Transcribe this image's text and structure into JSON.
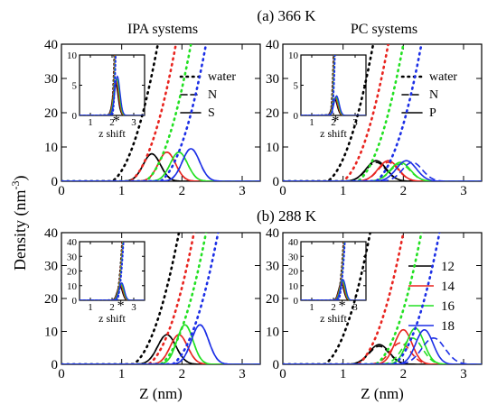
{
  "figure": {
    "row_titles": [
      "(a) 366 K",
      "(b) 288 K"
    ],
    "column_titles": [
      "IPA systems",
      "PC systems"
    ],
    "y_axis_label": "Density (nm",
    "y_axis_unit_exp": "-3",
    "y_axis_label_close": ")",
    "x_axis_label": "Z (nm)"
  },
  "legends": {
    "style_ipa": [
      "water",
      "N",
      "S"
    ],
    "style_pc": [
      "water",
      "N",
      "P"
    ],
    "size_entries": [
      "12",
      "14",
      "16",
      "18"
    ]
  },
  "colors": {
    "12": "#000000",
    "14": "#e8241f",
    "16": "#22e022",
    "18": "#1c2fe6"
  },
  "chart_data": [
    {
      "id": "a-ipa",
      "type": "line",
      "title": "IPA systems",
      "xlim": [
        0,
        3.3
      ],
      "ylim": [
        0,
        40
      ],
      "xticks": [
        "0",
        "1",
        "2",
        "3"
      ],
      "yticks": [
        "0",
        "10",
        "20",
        "30",
        "40"
      ],
      "series": [
        {
          "name": "12",
          "water_onset": 0.85,
          "N": {
            "center": 1.5,
            "height": 8.0,
            "width": 0.3
          },
          "S": {
            "center": 1.5,
            "height": 8.0,
            "width": 0.3
          }
        },
        {
          "name": "14",
          "water_onset": 1.15,
          "N": {
            "center": 1.75,
            "height": 8.5,
            "width": 0.3
          },
          "S": {
            "center": 1.75,
            "height": 8.5,
            "width": 0.3
          }
        },
        {
          "name": "16",
          "water_onset": 1.4,
          "N": {
            "center": 1.95,
            "height": 8.5,
            "width": 0.3
          },
          "S": {
            "center": 1.95,
            "height": 8.5,
            "width": 0.3
          }
        },
        {
          "name": "18",
          "water_onset": 1.65,
          "N": {
            "center": 2.15,
            "height": 9.5,
            "width": 0.3
          },
          "S": {
            "center": 2.15,
            "height": 9.5,
            "width": 0.3
          }
        }
      ],
      "inset": {
        "xlim": [
          0.5,
          3.5
        ],
        "ylim": [
          0,
          10
        ],
        "xticks": [
          "1",
          "2",
          "3"
        ],
        "yticks": [
          "0",
          "5",
          "10"
        ],
        "xlabel": "z shift",
        "peak_center": 2.2,
        "peak_height": 6,
        "marker": "*"
      }
    },
    {
      "id": "a-pc",
      "type": "line",
      "title": "PC systems",
      "xlim": [
        0,
        3.3
      ],
      "ylim": [
        0,
        40
      ],
      "xticks": [
        "0",
        "1",
        "2",
        "3"
      ],
      "yticks": [
        "0",
        "10",
        "20",
        "30",
        "40"
      ],
      "series": [
        {
          "name": "12",
          "water_onset": 0.75,
          "N": {
            "center": 1.55,
            "height": 5.5,
            "width": 0.35
          },
          "P": {
            "center": 1.55,
            "height": 6.0,
            "width": 0.35
          }
        },
        {
          "name": "14",
          "water_onset": 1.0,
          "N": {
            "center": 1.75,
            "height": 5.5,
            "width": 0.35
          },
          "P": {
            "center": 1.75,
            "height": 6.0,
            "width": 0.35
          }
        },
        {
          "name": "16",
          "water_onset": 1.25,
          "N": {
            "center": 1.95,
            "height": 5.0,
            "width": 0.35
          },
          "P": {
            "center": 1.95,
            "height": 5.5,
            "width": 0.35
          }
        },
        {
          "name": "18",
          "water_onset": 1.55,
          "N": {
            "center": 2.15,
            "height": 5.5,
            "width": 0.35
          },
          "P": {
            "center": 2.05,
            "height": 6.0,
            "width": 0.35
          }
        }
      ],
      "inset": {
        "xlim": [
          0.5,
          3.5
        ],
        "ylim": [
          0,
          10
        ],
        "xticks": [
          "1",
          "2",
          "3"
        ],
        "yticks": [
          "0",
          "5",
          "10"
        ],
        "xlabel": "z shift",
        "peak_center": 2.1,
        "peak_height": 3,
        "marker": "*"
      }
    },
    {
      "id": "b-ipa",
      "type": "line",
      "title": "",
      "xlim": [
        0,
        3.3
      ],
      "ylim": [
        0,
        40
      ],
      "xticks": [
        "0",
        "1",
        "2",
        "3"
      ],
      "yticks": [
        "0",
        "10",
        "20",
        "30",
        "40"
      ],
      "series": [
        {
          "name": "12",
          "water_onset": 1.2,
          "N": {
            "center": 1.75,
            "height": 9.0,
            "width": 0.32
          },
          "S": {
            "center": 1.75,
            "height": 9.0,
            "width": 0.32
          }
        },
        {
          "name": "14",
          "water_onset": 1.45,
          "N": {
            "center": 1.95,
            "height": 9.0,
            "width": 0.3
          },
          "S": {
            "center": 1.95,
            "height": 9.0,
            "width": 0.3
          }
        },
        {
          "name": "16",
          "water_onset": 1.65,
          "N": {
            "center": 2.05,
            "height": 12.0,
            "width": 0.28
          },
          "S": {
            "center": 2.05,
            "height": 12.0,
            "width": 0.28
          }
        },
        {
          "name": "18",
          "water_onset": 1.85,
          "N": {
            "center": 2.3,
            "height": 12.0,
            "width": 0.3
          },
          "S": {
            "center": 2.3,
            "height": 12.0,
            "width": 0.3
          }
        }
      ],
      "inset": {
        "xlim": [
          0.5,
          3.5
        ],
        "ylim": [
          0,
          40
        ],
        "xticks": [
          "1",
          "2",
          "3"
        ],
        "yticks": [
          "0",
          "10",
          "20",
          "30",
          "40"
        ],
        "xlabel": "z shift",
        "peak_center": 2.4,
        "peak_height": 11,
        "marker": "*"
      }
    },
    {
      "id": "b-pc",
      "type": "line",
      "title": "",
      "xlim": [
        0,
        3.3
      ],
      "ylim": [
        0,
        40
      ],
      "xticks": [
        "0",
        "1",
        "2",
        "3"
      ],
      "yticks": [
        "0",
        "10",
        "20",
        "30",
        "40"
      ],
      "series": [
        {
          "name": "12",
          "water_onset": 0.7,
          "N": {
            "center": 1.6,
            "height": 5.5,
            "width": 0.35
          },
          "P": {
            "center": 1.6,
            "height": 6.0,
            "width": 0.35
          }
        },
        {
          "name": "14",
          "water_onset": 1.25,
          "N": {
            "center": 1.95,
            "height": 6.5,
            "width": 0.35
          },
          "P": {
            "center": 2.0,
            "height": 10.5,
            "width": 0.3
          }
        },
        {
          "name": "16",
          "water_onset": 1.55,
          "N": {
            "center": 2.15,
            "height": 8.0,
            "width": 0.35
          },
          "P": {
            "center": 2.2,
            "height": 11.0,
            "width": 0.3
          }
        },
        {
          "name": "18",
          "water_onset": 1.85,
          "N": {
            "center": 2.5,
            "height": 8.0,
            "width": 0.4
          },
          "P": {
            "center": 2.35,
            "height": 10.5,
            "width": 0.3
          }
        }
      ],
      "inset": {
        "xlim": [
          0.5,
          3.5
        ],
        "ylim": [
          0,
          40
        ],
        "xticks": [
          "1",
          "2",
          "3"
        ],
        "yticks": [
          "0",
          "10",
          "20",
          "30",
          "40"
        ],
        "xlabel": "z shift",
        "peak_center": 2.4,
        "peak_height": 13,
        "marker": "*"
      }
    }
  ]
}
